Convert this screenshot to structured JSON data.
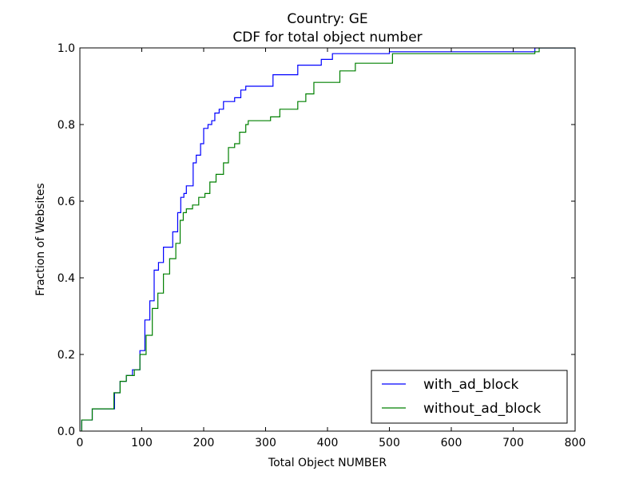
{
  "chart_data": {
    "type": "line",
    "title": "Country: GE",
    "subtitle": "CDF for total object number",
    "xlabel": "Total Object NUMBER",
    "ylabel": "Fraction of Websites",
    "xlim": [
      0,
      800
    ],
    "ylim": [
      0,
      1
    ],
    "xticks": [
      "0",
      "100",
      "200",
      "300",
      "400",
      "500",
      "600",
      "700",
      "800"
    ],
    "yticks": [
      "0.0",
      "0.2",
      "0.4",
      "0.6",
      "0.8",
      "1.0"
    ],
    "grid": false,
    "legend_position": "lower-right",
    "series": [
      {
        "name": "with_ad_block",
        "color": "#0000ff",
        "x": [
          3,
          20,
          48,
          56,
          65,
          75,
          85,
          97,
          105,
          113,
          120,
          127,
          135,
          140,
          150,
          158,
          163,
          168,
          172,
          176,
          183,
          188,
          195,
          200,
          207,
          213,
          218,
          225,
          232,
          240,
          250,
          260,
          268,
          272,
          288,
          312,
          352,
          390,
          408,
          500,
          735
        ],
        "y": [
          0.029,
          0.058,
          0.058,
          0.1,
          0.13,
          0.145,
          0.16,
          0.21,
          0.29,
          0.34,
          0.42,
          0.44,
          0.48,
          0.48,
          0.52,
          0.57,
          0.61,
          0.62,
          0.64,
          0.64,
          0.7,
          0.72,
          0.75,
          0.79,
          0.8,
          0.81,
          0.83,
          0.84,
          0.86,
          0.86,
          0.87,
          0.89,
          0.9,
          0.9,
          0.9,
          0.93,
          0.955,
          0.97,
          0.985,
          0.99,
          1.0
        ]
      },
      {
        "name": "without_ad_block",
        "color": "#008000",
        "x": [
          3,
          20,
          48,
          55,
          65,
          75,
          88,
          97,
          107,
          117,
          126,
          135,
          145,
          155,
          162,
          167,
          172,
          182,
          192,
          202,
          210,
          220,
          232,
          240,
          250,
          258,
          268,
          272,
          308,
          323,
          352,
          365,
          378,
          405,
          420,
          445,
          505,
          735,
          742
        ],
        "y": [
          0.029,
          0.058,
          0.058,
          0.1,
          0.13,
          0.145,
          0.16,
          0.2,
          0.25,
          0.32,
          0.36,
          0.41,
          0.45,
          0.49,
          0.55,
          0.57,
          0.58,
          0.59,
          0.61,
          0.62,
          0.65,
          0.67,
          0.7,
          0.74,
          0.75,
          0.78,
          0.8,
          0.81,
          0.82,
          0.84,
          0.86,
          0.88,
          0.91,
          0.91,
          0.94,
          0.96,
          0.985,
          0.99,
          1.0
        ]
      }
    ]
  }
}
